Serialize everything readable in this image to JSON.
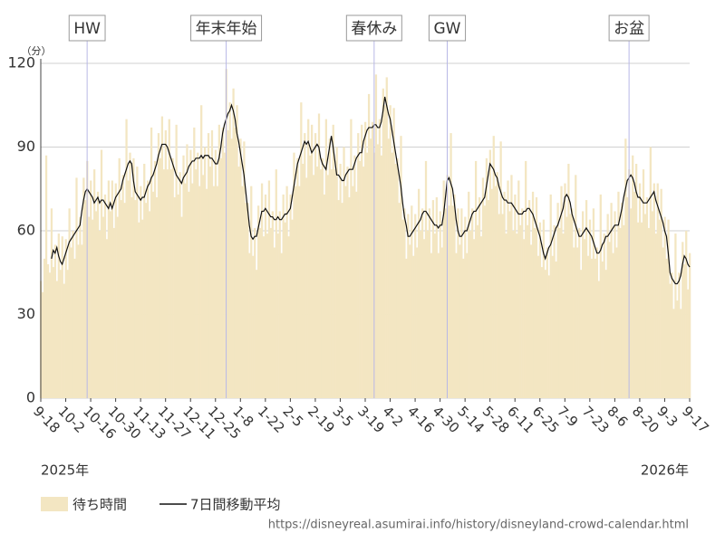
{
  "chart_data": {
    "type": "bar",
    "unit_label": "（分）",
    "x": [
      0,
      1,
      2,
      3,
      4,
      5,
      6,
      7,
      8,
      9,
      10,
      11,
      12,
      13,
      14,
      15,
      16,
      17,
      18,
      19,
      20,
      21,
      22,
      23,
      24,
      25,
      26,
      27,
      28,
      29,
      30,
      31,
      32,
      33,
      34,
      35,
      36,
      37,
      38,
      39,
      40,
      41,
      42,
      43,
      44,
      45,
      46,
      47,
      48,
      49,
      50,
      51,
      52,
      53,
      54,
      55,
      56,
      57,
      58,
      59,
      60,
      61,
      62,
      63,
      64,
      65,
      66,
      67,
      68,
      69,
      70,
      71,
      72,
      73,
      74,
      75,
      76,
      77,
      78,
      79,
      80,
      81,
      82,
      83,
      84,
      85,
      86,
      87,
      88,
      89,
      90,
      91,
      92,
      93,
      94,
      95,
      96,
      97,
      98,
      99,
      100,
      101,
      102,
      103,
      104,
      105,
      106,
      107,
      108,
      109,
      110,
      111,
      112,
      113,
      114,
      115,
      116,
      117,
      118,
      119,
      120,
      121,
      122,
      123,
      124,
      125,
      126,
      127,
      128,
      129,
      130,
      131,
      132,
      133,
      134,
      135,
      136,
      137,
      138,
      139,
      140,
      141,
      142,
      143,
      144,
      145,
      146,
      147,
      148,
      149,
      150,
      151,
      152,
      153,
      154,
      155,
      156,
      157,
      158,
      159,
      160,
      161,
      162,
      163,
      164,
      165,
      166,
      167,
      168,
      169,
      170,
      171,
      172,
      173,
      174,
      175,
      176,
      177,
      178,
      179,
      180,
      181,
      182,
      183,
      184,
      185,
      186,
      187,
      188,
      189,
      190,
      191,
      192,
      193,
      194,
      195,
      196,
      197,
      198,
      199,
      200,
      201,
      202,
      203,
      204,
      205,
      206,
      207,
      208,
      209,
      210,
      211,
      212,
      213,
      214,
      215,
      216,
      217,
      218,
      219,
      220,
      221,
      222,
      223,
      224,
      225,
      226,
      227,
      228,
      229,
      230,
      231,
      232,
      233,
      234,
      235,
      236,
      237,
      238,
      239,
      240,
      241,
      242,
      243,
      244,
      245,
      246,
      247,
      248,
      249,
      250,
      251,
      252,
      253,
      254,
      255,
      256,
      257,
      258,
      259,
      260,
      261,
      262,
      263,
      264,
      265,
      266,
      267,
      268,
      269,
      270,
      271,
      272,
      273,
      274,
      275,
      276,
      277,
      278,
      279,
      280,
      281,
      282,
      283,
      284,
      285,
      286,
      287,
      288,
      289,
      290,
      291,
      292,
      293,
      294,
      295,
      296,
      297,
      298,
      299,
      300,
      301,
      302,
      303,
      304,
      305,
      306,
      307,
      308,
      309,
      310,
      311,
      312,
      313,
      314,
      315,
      316,
      317,
      318,
      319,
      320,
      321,
      322,
      323,
      324,
      325,
      326,
      327,
      328,
      329,
      330,
      331,
      332,
      333,
      334,
      335,
      336,
      337,
      338,
      339,
      340,
      341,
      342,
      343,
      344,
      345,
      346,
      347,
      348,
      349,
      350,
      351,
      352,
      353,
      354,
      355,
      356,
      357,
      358,
      359,
      360,
      361,
      362,
      363,
      364
    ],
    "series": [
      {
        "name": "待ち時間",
        "type": "bar",
        "color": "#f3e6c2",
        "values": [
          42,
          38,
          50,
          87,
          48,
          45,
          68,
          47,
          55,
          42,
          59,
          46,
          58,
          41,
          57,
          46,
          68,
          54,
          60,
          50,
          79,
          55,
          65,
          55,
          79,
          71,
          85,
          65,
          78,
          64,
          82,
          67,
          74,
          60,
          89,
          65,
          73,
          57,
          78,
          67,
          78,
          61,
          77,
          65,
          86,
          71,
          80,
          70,
          100,
          78,
          88,
          72,
          86,
          71,
          83,
          63,
          76,
          64,
          84,
          70,
          78,
          67,
          97,
          74,
          85,
          72,
          95,
          86,
          101,
          82,
          96,
          82,
          100,
          82,
          86,
          72,
          98,
          73,
          81,
          65,
          87,
          77,
          91,
          74,
          89,
          77,
          97,
          82,
          88,
          76,
          105,
          80,
          90,
          75,
          95,
          83,
          96,
          76,
          89,
          76,
          98,
          86,
          97,
          88,
          118,
          96,
          106,
          93,
          111,
          97,
          105,
          83,
          93,
          76,
          92,
          70,
          70,
          52,
          76,
          51,
          61,
          46,
          69,
          61,
          77,
          58,
          73,
          59,
          78,
          61,
          67,
          54,
          82,
          59,
          67,
          52,
          73,
          63,
          76,
          58,
          73,
          64,
          88,
          76,
          86,
          76,
          106,
          84,
          95,
          79,
          100,
          87,
          98,
          80,
          95,
          83,
          102,
          82,
          86,
          73,
          100,
          80,
          93,
          82,
          98,
          82,
          90,
          71,
          84,
          70,
          90,
          76,
          83,
          72,
          100,
          76,
          87,
          74,
          95,
          85,
          98,
          83,
          99,
          88,
          109,
          93,
          99,
          88,
          116,
          91,
          100,
          87,
          111,
          105,
          115,
          93,
          105,
          88,
          104,
          84,
          86,
          70,
          94,
          64,
          68,
          50,
          66,
          55,
          69,
          51,
          66,
          54,
          75,
          60,
          68,
          57,
          85,
          60,
          68,
          52,
          71,
          59,
          72,
          52,
          67,
          54,
          78,
          68,
          80,
          69,
          95,
          69,
          73,
          52,
          68,
          55,
          68,
          50,
          65,
          52,
          74,
          60,
          68,
          57,
          85,
          62,
          72,
          58,
          79,
          69,
          86,
          71,
          89,
          75,
          94,
          76,
          81,
          66,
          92,
          66,
          74,
          59,
          78,
          67,
          80,
          60,
          73,
          59,
          78,
          62,
          68,
          57,
          85,
          62,
          71,
          55,
          74,
          61,
          72,
          51,
          63,
          47,
          64,
          46,
          54,
          44,
          73,
          51,
          62,
          49,
          70,
          61,
          76,
          59,
          77,
          65,
          84,
          66,
          68,
          54,
          80,
          54,
          61,
          46,
          67,
          57,
          71,
          51,
          64,
          50,
          68,
          50,
          54,
          42,
          73,
          49,
          59,
          46,
          66,
          56,
          70,
          52,
          67,
          54,
          74,
          61,
          70,
          62,
          93,
          72,
          82,
          68,
          87,
          74,
          84,
          63,
          77,
          63,
          82,
          66,
          72,
          61,
          90,
          67,
          77,
          59,
          77,
          64,
          75,
          54,
          65,
          50,
          64,
          41,
          45,
          32,
          59,
          35,
          45,
          32,
          56,
          48,
          60,
          39,
          52
        ]
      },
      {
        "name": "7日間移動平均",
        "type": "line",
        "color": "#111111",
        "values": [
          null,
          null,
          null,
          null,
          null,
          null,
          50,
          53,
          52,
          54,
          51,
          49,
          48,
          50,
          52,
          54,
          56,
          57,
          58,
          59,
          60,
          61,
          62,
          67,
          71,
          74,
          75,
          74,
          73,
          72,
          70,
          71,
          72,
          70,
          71,
          71,
          70,
          69,
          68,
          70,
          68,
          70,
          72,
          73,
          74,
          75,
          78,
          80,
          82,
          84,
          85,
          84,
          78,
          74,
          73,
          72,
          71,
          72,
          72,
          74,
          76,
          77,
          79,
          80,
          82,
          84,
          87,
          89,
          91,
          91,
          91,
          90,
          88,
          86,
          84,
          82,
          80,
          79,
          78,
          77,
          79,
          80,
          81,
          83,
          84,
          85,
          85,
          86,
          86,
          86,
          87,
          86,
          87,
          87,
          87,
          86,
          86,
          85,
          84,
          84,
          86,
          90,
          95,
          98,
          100,
          102,
          103,
          105,
          103,
          100,
          95,
          92,
          88,
          84,
          80,
          74,
          68,
          62,
          58,
          57,
          58,
          58,
          61,
          64,
          67,
          67,
          68,
          67,
          66,
          65,
          65,
          64,
          64,
          65,
          64,
          64,
          65,
          66,
          66,
          67,
          68,
          72,
          76,
          80,
          84,
          86,
          88,
          90,
          92,
          91,
          92,
          90,
          88,
          89,
          90,
          91,
          90,
          86,
          84,
          83,
          82,
          86,
          90,
          94,
          90,
          85,
          80,
          80,
          79,
          78,
          78,
          80,
          81,
          82,
          82,
          82,
          84,
          86,
          87,
          88,
          88,
          92,
          94,
          96,
          97,
          97,
          97,
          98,
          98,
          97,
          97,
          99,
          103,
          108,
          105,
          102,
          100,
          96,
          92,
          88,
          84,
          80,
          76,
          70,
          65,
          62,
          58,
          58,
          59,
          60,
          61,
          62,
          63,
          64,
          66,
          67,
          67,
          66,
          65,
          64,
          63,
          62,
          62,
          61,
          62,
          62,
          66,
          72,
          78,
          79,
          77,
          75,
          70,
          64,
          60,
          58,
          58,
          59,
          60,
          60,
          62,
          64,
          66,
          67,
          67,
          68,
          69,
          70,
          71,
          72,
          76,
          80,
          84,
          83,
          82,
          80,
          79,
          76,
          74,
          72,
          71,
          71,
          70,
          70,
          70,
          69,
          68,
          67,
          66,
          66,
          66,
          67,
          67,
          68,
          68,
          67,
          66,
          64,
          62,
          60,
          58,
          55,
          52,
          50,
          52,
          54,
          55,
          57,
          59,
          61,
          62,
          64,
          66,
          68,
          72,
          73,
          72,
          70,
          66,
          64,
          62,
          60,
          58,
          58,
          59,
          60,
          61,
          60,
          59,
          58,
          56,
          54,
          52,
          52,
          53,
          55,
          56,
          58,
          58,
          59,
          60,
          61,
          62,
          62,
          62,
          65,
          68,
          72,
          75,
          78,
          79,
          80,
          79,
          77,
          74,
          72,
          72,
          71,
          70,
          70,
          70,
          71,
          72,
          73,
          74,
          71,
          69,
          67,
          65,
          63,
          60,
          58,
          52,
          45,
          43,
          42,
          41,
          41,
          42,
          44,
          48,
          51,
          50,
          48,
          47
        ]
      }
    ],
    "xlim": [
      0,
      364
    ],
    "xticks": [
      {
        "value": 0,
        "label": "9-18"
      },
      {
        "value": 14,
        "label": "10-2"
      },
      {
        "value": 28,
        "label": "10-16"
      },
      {
        "value": 42,
        "label": "10-30"
      },
      {
        "value": 56,
        "label": "11-13"
      },
      {
        "value": 70,
        "label": "11-27"
      },
      {
        "value": 84,
        "label": "12-11"
      },
      {
        "value": 98,
        "label": "12-25"
      },
      {
        "value": 112,
        "label": "1-8"
      },
      {
        "value": 126,
        "label": "1-22"
      },
      {
        "value": 140,
        "label": "2-5"
      },
      {
        "value": 154,
        "label": "2-19"
      },
      {
        "value": 168,
        "label": "3-5"
      },
      {
        "value": 182,
        "label": "3-19"
      },
      {
        "value": 196,
        "label": "4-2"
      },
      {
        "value": 210,
        "label": "4-16"
      },
      {
        "value": 224,
        "label": "4-30"
      },
      {
        "value": 238,
        "label": "5-14"
      },
      {
        "value": 252,
        "label": "5-28"
      },
      {
        "value": 266,
        "label": "6-11"
      },
      {
        "value": 280,
        "label": "6-25"
      },
      {
        "value": 294,
        "label": "7-9"
      },
      {
        "value": 308,
        "label": "7-23"
      },
      {
        "value": 322,
        "label": "8-6"
      },
      {
        "value": 336,
        "label": "8-20"
      },
      {
        "value": 350,
        "label": "9-3"
      },
      {
        "value": 364,
        "label": "9-17"
      }
    ],
    "ylim": [
      0,
      120
    ],
    "yticks": [
      0,
      30,
      60,
      90,
      120
    ],
    "grid": true,
    "year_labels": [
      "2025年",
      "2026年"
    ],
    "events": [
      {
        "label": "HW",
        "x": 26
      },
      {
        "label": "年末年始",
        "x": 104
      },
      {
        "label": "春休み",
        "x": 187
      },
      {
        "label": "GW",
        "x": 228
      },
      {
        "label": "お盆",
        "x": 330
      }
    ],
    "source": "https://disneyreal.asumirai.info/history/disneyland-crowd-calendar.html"
  }
}
